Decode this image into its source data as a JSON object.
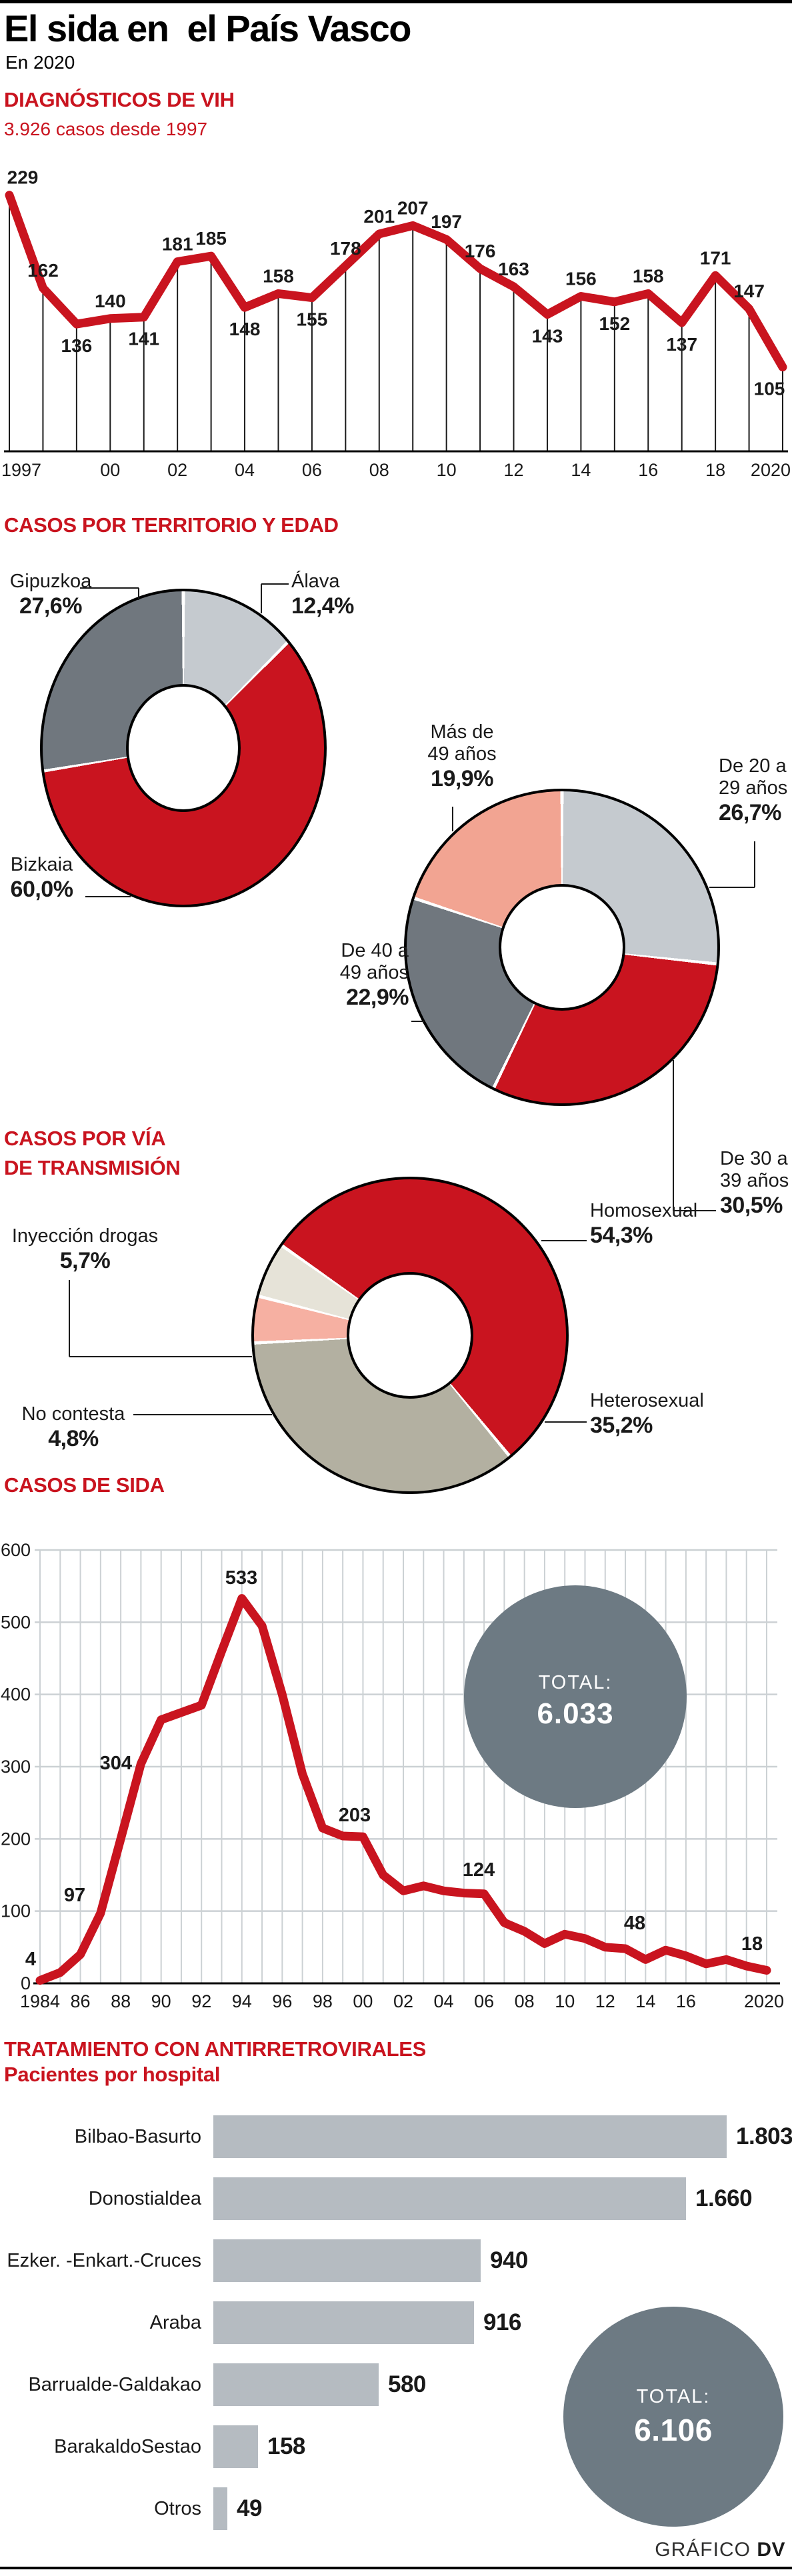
{
  "colors": {
    "red": "#c9141f",
    "dark_gray": "#70777e",
    "light_gray": "#c5cacf",
    "salmon": "#f2a492",
    "pink": "#f6b0a2",
    "beige": "#e6e3d8",
    "tan": "#b3b0a1",
    "total_circle": "#6d7a83",
    "bar": "#b5bbc1",
    "grid": "#ccd1d4",
    "ink": "#1a1a1a"
  },
  "header": {
    "title": "El sida en  el País Vasco",
    "subtitle": "En 2020"
  },
  "sections": {
    "territorio_edad": "CASOS POR TERRITORIO Y EDAD",
    "transmision_line1": "CASOS POR VÍA",
    "transmision_line2": "DE TRANSMISIÓN"
  },
  "footer": {
    "credit_normal": "GRÁFICO ",
    "credit_bold": "DV"
  },
  "chart_data": [
    {
      "id": "vih",
      "type": "line",
      "title": "DIAGNÓSTICOS DE VIH",
      "subtitle": "3.926 casos desde 1997",
      "years": [
        1997,
        1998,
        1999,
        2000,
        2001,
        2002,
        2003,
        2004,
        2005,
        2006,
        2007,
        2008,
        2009,
        2010,
        2011,
        2012,
        2013,
        2014,
        2015,
        2016,
        2017,
        2018,
        2019,
        2020
      ],
      "values": [
        229,
        162,
        136,
        140,
        141,
        181,
        185,
        148,
        158,
        155,
        178,
        201,
        207,
        197,
        176,
        163,
        143,
        156,
        152,
        158,
        137,
        171,
        147,
        105
      ],
      "x_tick_labels": [
        {
          "year": 1997,
          "label": "1997"
        },
        {
          "year": 2000,
          "label": "00"
        },
        {
          "year": 2002,
          "label": "02"
        },
        {
          "year": 2004,
          "label": "04"
        },
        {
          "year": 2006,
          "label": "06"
        },
        {
          "year": 2008,
          "label": "08"
        },
        {
          "year": 2010,
          "label": "10"
        },
        {
          "year": 2012,
          "label": "12"
        },
        {
          "year": 2014,
          "label": "14"
        },
        {
          "year": 2016,
          "label": "16"
        },
        {
          "year": 2018,
          "label": "18"
        },
        {
          "year": 2020,
          "label": "2020"
        }
      ],
      "ylim": [
        44,
        262
      ],
      "grid": false,
      "legend": false
    },
    {
      "id": "territorio",
      "type": "pie",
      "start_angle": 0,
      "segments": [
        {
          "label_lines": [
            "Álava"
          ],
          "pct": "12,4%",
          "value": 12.4,
          "color": "light_gray"
        },
        {
          "label_lines": [
            "Bizkaia"
          ],
          "pct": "60,0%",
          "value": 60.0,
          "color": "red"
        },
        {
          "label_lines": [
            "Gipuzkoa"
          ],
          "pct": "27,6%",
          "value": 27.6,
          "color": "dark_gray"
        }
      ]
    },
    {
      "id": "edad",
      "type": "pie",
      "start_angle": 0,
      "segments": [
        {
          "label_lines": [
            "De 20 a",
            "29 años"
          ],
          "pct": "26,7%",
          "value": 26.7,
          "color": "light_gray"
        },
        {
          "label_lines": [
            "De 30 a",
            "39 años"
          ],
          "pct": "30,5%",
          "value": 30.5,
          "color": "red"
        },
        {
          "label_lines": [
            "De 40 a",
            "49 años"
          ],
          "pct": "22,9%",
          "value": 22.9,
          "color": "dark_gray"
        },
        {
          "label_lines": [
            "Más de",
            "49 años"
          ],
          "pct": "19,9%",
          "value": 19.9,
          "color": "salmon"
        }
      ]
    },
    {
      "id": "transmision",
      "type": "pie",
      "start_angle": 305,
      "segments": [
        {
          "label_lines": [
            "Homosexual"
          ],
          "pct": "54,3%",
          "value": 54.3,
          "color": "red"
        },
        {
          "label_lines": [
            "Heterosexual"
          ],
          "pct": "35,2%",
          "value": 35.2,
          "color": "tan"
        },
        {
          "label_lines": [
            "No contesta"
          ],
          "pct": "4,8%",
          "value": 4.8,
          "color": "pink"
        },
        {
          "label_lines": [
            "Inyección drogas"
          ],
          "pct": "5,7%",
          "value": 5.7,
          "color": "beige"
        }
      ]
    },
    {
      "id": "sida",
      "type": "line",
      "title": "CASOS DE SIDA",
      "years": [
        1984,
        1985,
        1986,
        1987,
        1988,
        1989,
        1990,
        1991,
        1992,
        1993,
        1994,
        1995,
        1996,
        1997,
        1998,
        1999,
        2000,
        2001,
        2002,
        2003,
        2004,
        2005,
        2006,
        2007,
        2008,
        2009,
        2010,
        2011,
        2012,
        2013,
        2014,
        2015,
        2016,
        2017,
        2018,
        2019,
        2020
      ],
      "values": [
        4,
        15,
        40,
        97,
        200,
        304,
        365,
        375,
        385,
        460,
        533,
        495,
        400,
        290,
        215,
        204,
        203,
        150,
        128,
        135,
        128,
        125,
        124,
        84,
        72,
        55,
        68,
        62,
        50,
        48,
        33,
        46,
        38,
        27,
        33,
        24,
        18
      ],
      "labeled_points": [
        {
          "year": 1984,
          "label": "4"
        },
        {
          "year": 1987,
          "label": "97"
        },
        {
          "year": 1989,
          "label": "304"
        },
        {
          "year": 1994,
          "label": "533"
        },
        {
          "year": 2000,
          "label": "203"
        },
        {
          "year": 2006,
          "label": "124"
        },
        {
          "year": 2013,
          "label": "48"
        },
        {
          "year": 2020,
          "label": "18"
        }
      ],
      "y_ticks": [
        {
          "value": 600,
          "label": "600"
        },
        {
          "value": 500,
          "label": "500"
        },
        {
          "value": 400,
          "label": "400"
        },
        {
          "value": 300,
          "label": "300"
        },
        {
          "value": 200,
          "label": "200"
        },
        {
          "value": 100,
          "label": "100"
        },
        {
          "value": 0,
          "label": "0"
        }
      ],
      "x_tick_labels": [
        {
          "year": 1984,
          "label": "1984"
        },
        {
          "year": 1986,
          "label": "86"
        },
        {
          "year": 1988,
          "label": "88"
        },
        {
          "year": 1990,
          "label": "90"
        },
        {
          "year": 1992,
          "label": "92"
        },
        {
          "year": 1994,
          "label": "94"
        },
        {
          "year": 1996,
          "label": "96"
        },
        {
          "year": 1998,
          "label": "98"
        },
        {
          "year": 2000,
          "label": "00"
        },
        {
          "year": 2002,
          "label": "02"
        },
        {
          "year": 2004,
          "label": "04"
        },
        {
          "year": 2006,
          "label": "06"
        },
        {
          "year": 2008,
          "label": "08"
        },
        {
          "year": 2010,
          "label": "10"
        },
        {
          "year": 2012,
          "label": "12"
        },
        {
          "year": 2014,
          "label": "14"
        },
        {
          "year": 2016,
          "label": "16"
        },
        {
          "year": 2020,
          "label": "2020"
        }
      ],
      "ylim": [
        0,
        600
      ],
      "grid": true,
      "total": {
        "label": "TOTAL:",
        "value": "6.033"
      }
    },
    {
      "id": "hospitales",
      "type": "bar",
      "title": "TRATAMIENTO CON ANTIRRETROVIRALES",
      "subtitle": "Pacientes por hospital",
      "bars": [
        {
          "label": "Bilbao-Basurto",
          "value": 1803,
          "value_label": "1.803"
        },
        {
          "label": "Donostialdea",
          "value": 1660,
          "value_label": "1.660"
        },
        {
          "label": "Ezker. -Enkart.-Cruces",
          "value": 940,
          "value_label": "940"
        },
        {
          "label": "Araba",
          "value": 916,
          "value_label": "916"
        },
        {
          "label": "Barrualde-Galdakao",
          "value": 580,
          "value_label": "580"
        },
        {
          "label": "BarakaldoSestao",
          "value": 158,
          "value_label": "158"
        },
        {
          "label": "Otros",
          "value": 49,
          "value_label": "49"
        }
      ],
      "total": {
        "label": "TOTAL:",
        "value": "6.106"
      }
    }
  ]
}
